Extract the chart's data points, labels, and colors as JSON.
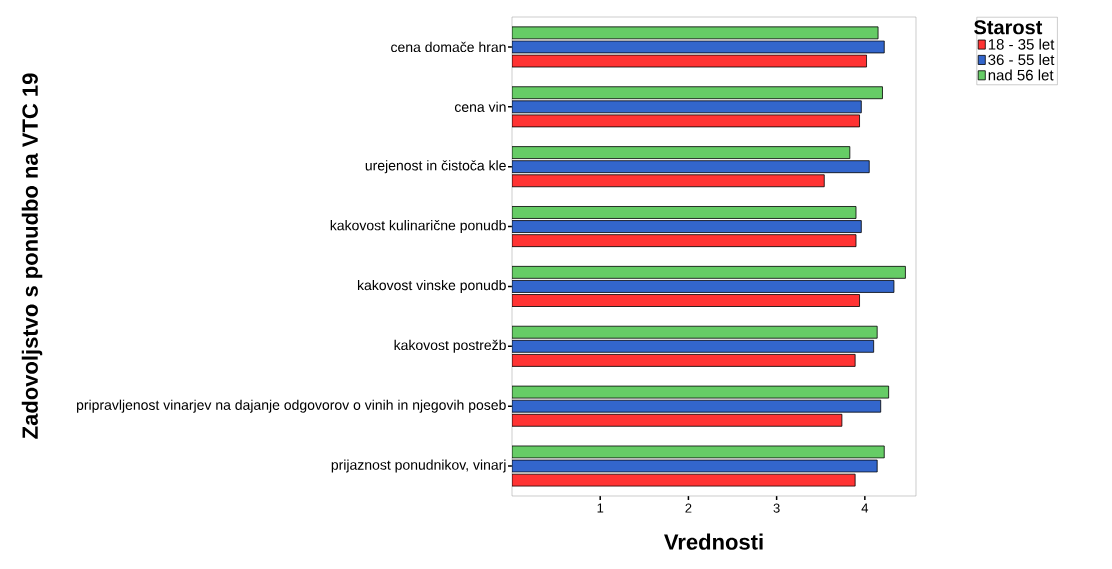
{
  "chart_data": {
    "type": "bar",
    "orientation": "horizontal",
    "xlabel": "Vrednosti",
    "ylabel": "Zadovoljstvo s ponudbo na VTC 19",
    "legend_title": "Starost",
    "categories": [
      "cena domače hran",
      "cena vin",
      "urejenost in čistoča kle",
      "kakovost kulinarične ponudb",
      "kakovost vinske ponudb",
      "kakovost postrežb",
      "pripravljenost vinarjev na dajanje odgovorov o vinih in njegovih poseb",
      "prijaznost ponudnikov, vinarj"
    ],
    "series": [
      {
        "name": "18 - 35 let",
        "color": "#ff3333",
        "values": [
          4.02,
          3.94,
          3.54,
          3.9,
          3.94,
          3.89,
          3.74,
          3.89
        ]
      },
      {
        "name": "36 - 55 let",
        "color": "#3366cc",
        "values": [
          4.22,
          3.96,
          4.05,
          3.96,
          4.33,
          4.1,
          4.18,
          4.14
        ]
      },
      {
        "name": "nad 56 let",
        "color": "#66cc66",
        "values": [
          4.15,
          4.2,
          3.83,
          3.9,
          4.46,
          4.14,
          4.27,
          4.22
        ]
      }
    ],
    "xlim": [
      0,
      4.58
    ],
    "xticks": [
      1,
      2,
      3,
      4
    ],
    "grid": false,
    "legend": "top right"
  }
}
